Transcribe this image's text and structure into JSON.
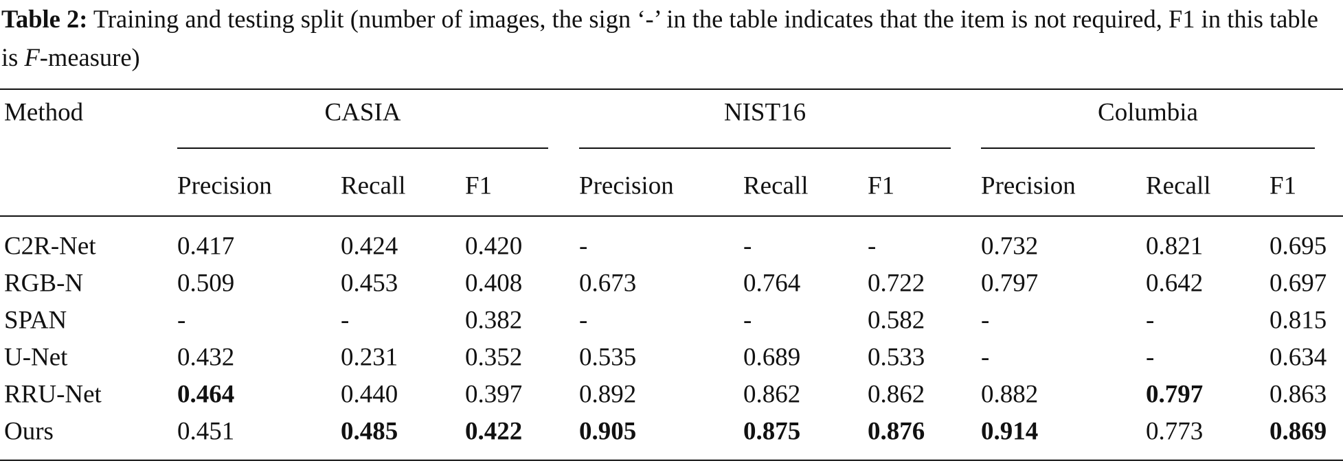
{
  "caption": {
    "label": "Table 2:",
    "text": "Training and testing split (number of images, the sign ‘-’ in the table indicates that the item is not required, F1 in this table is",
    "italic": "F",
    "tail": "-measure)"
  },
  "table": {
    "corner": "Method",
    "groups": [
      "CASIA",
      "NIST16",
      "Columbia"
    ],
    "subheaders": [
      "Precision",
      "Recall",
      "F1",
      "Precision",
      "Recall",
      "F1",
      "Precision",
      "Recall",
      "F1"
    ],
    "rows": [
      {
        "cells": [
          {
            "text": "C2R-Net"
          },
          {
            "text": "0.417"
          },
          {
            "text": "0.424"
          },
          {
            "text": "0.420"
          },
          {
            "text": "-"
          },
          {
            "text": "-"
          },
          {
            "text": "-"
          },
          {
            "text": "0.732"
          },
          {
            "text": "0.821"
          },
          {
            "text": "0.695"
          }
        ]
      },
      {
        "cells": [
          {
            "text": "RGB-N"
          },
          {
            "text": "0.509"
          },
          {
            "text": "0.453"
          },
          {
            "text": "0.408"
          },
          {
            "text": "0.673"
          },
          {
            "text": "0.764"
          },
          {
            "text": "0.722"
          },
          {
            "text": "0.797"
          },
          {
            "text": "0.642"
          },
          {
            "text": "0.697"
          }
        ]
      },
      {
        "cells": [
          {
            "text": "SPAN"
          },
          {
            "text": "-"
          },
          {
            "text": "-"
          },
          {
            "text": "0.382"
          },
          {
            "text": "-"
          },
          {
            "text": "-"
          },
          {
            "text": "0.582"
          },
          {
            "text": "-"
          },
          {
            "text": "-"
          },
          {
            "text": "0.815"
          }
        ]
      },
      {
        "cells": [
          {
            "text": "U-Net"
          },
          {
            "text": "0.432"
          },
          {
            "text": "0.231"
          },
          {
            "text": "0.352"
          },
          {
            "text": "0.535"
          },
          {
            "text": "0.689"
          },
          {
            "text": "0.533"
          },
          {
            "text": "-"
          },
          {
            "text": "-"
          },
          {
            "text": "0.634"
          }
        ]
      },
      {
        "cells": [
          {
            "text": "RRU-Net"
          },
          {
            "text": "0.464",
            "bold": true
          },
          {
            "text": "0.440"
          },
          {
            "text": "0.397"
          },
          {
            "text": "0.892"
          },
          {
            "text": "0.862"
          },
          {
            "text": "0.862"
          },
          {
            "text": "0.882"
          },
          {
            "text": "0.797",
            "bold": true
          },
          {
            "text": "0.863"
          }
        ]
      },
      {
        "cells": [
          {
            "text": "Ours"
          },
          {
            "text": "0.451"
          },
          {
            "text": "0.485",
            "bold": true
          },
          {
            "text": "0.422",
            "bold": true
          },
          {
            "text": "0.905",
            "bold": true
          },
          {
            "text": "0.875",
            "bold": true
          },
          {
            "text": "0.876",
            "bold": true
          },
          {
            "text": "0.914",
            "bold": true
          },
          {
            "text": "0.773"
          },
          {
            "text": "0.869",
            "bold": true
          }
        ]
      }
    ]
  }
}
